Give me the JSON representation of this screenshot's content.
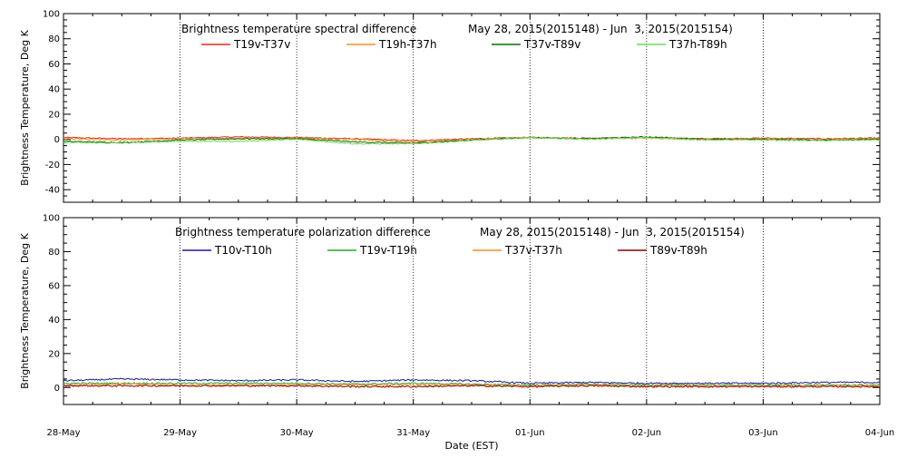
{
  "xlabel": "Date (EST)",
  "x_tick_labels": [
    "28-May",
    "29-May",
    "30-May",
    "31-May",
    "01-Jun",
    "02-Jun",
    "03-Jun",
    "04-Jun"
  ],
  "chart_data": [
    {
      "type": "line",
      "title": "Brightness temperature spectral difference",
      "date_range": "May 28, 2015(2015148) - Jun  3, 2015(2015154)",
      "ylabel": "Brightness Temperature, Deg K",
      "xlim": [
        "2015-05-28",
        "2015-06-04"
      ],
      "ylim": [
        -50,
        100
      ],
      "yticks": [
        -40,
        -20,
        0,
        20,
        40,
        60,
        80,
        100
      ],
      "grid": "vertical dotted at each day",
      "legend_placement": "top",
      "x": [
        "2015-05-28 00:00",
        "2015-05-28 12:00",
        "2015-05-29 00:00",
        "2015-05-29 12:00",
        "2015-05-30 00:00",
        "2015-05-30 12:00",
        "2015-05-31 00:00",
        "2015-05-31 12:00",
        "2015-06-01 00:00",
        "2015-06-01 12:00",
        "2015-06-02 00:00",
        "2015-06-02 12:00",
        "2015-06-03 00:00",
        "2015-06-03 12:00",
        "2015-06-04 00:00"
      ],
      "series": [
        {
          "name": "T19v-T37v",
          "color": "#e8291c",
          "values": [
            1.5,
            0.5,
            1.0,
            2.0,
            1.5,
            0.5,
            -1.0,
            0.5,
            1.5,
            1.0,
            1.5,
            0.5,
            1.0,
            0.5,
            1.0
          ]
        },
        {
          "name": "T19h-T37h",
          "color": "#ff8c1a",
          "values": [
            0.5,
            -0.5,
            0.5,
            1.0,
            1.0,
            0.0,
            -2.0,
            0.0,
            1.5,
            0.5,
            1.0,
            0.0,
            0.5,
            0.0,
            0.5
          ]
        },
        {
          "name": "T37v-T89v",
          "color": "#007000",
          "values": [
            -1.5,
            -2.5,
            -0.5,
            0.5,
            0.5,
            -2.0,
            -3.0,
            -0.5,
            1.5,
            0.5,
            2.0,
            0.0,
            0.0,
            -0.5,
            0.0
          ]
        },
        {
          "name": "T37h-T89h",
          "color": "#66dd55",
          "values": [
            -2.5,
            -3.0,
            -1.5,
            -1.5,
            0.0,
            -3.5,
            -3.5,
            -1.0,
            1.5,
            0.0,
            1.5,
            -0.5,
            -0.5,
            -1.0,
            -0.5
          ]
        }
      ]
    },
    {
      "type": "line",
      "title": "Brightness temperature polarization difference",
      "date_range": "May 28, 2015(2015148) - Jun  3, 2015(2015154)",
      "ylabel": "Brightness Temperature, Deg K",
      "xlim": [
        "2015-05-28",
        "2015-06-04"
      ],
      "ylim": [
        -10,
        100
      ],
      "yticks": [
        0,
        20,
        40,
        60,
        80,
        100
      ],
      "grid": "vertical dotted at each day",
      "legend_placement": "top",
      "x": [
        "2015-05-28 00:00",
        "2015-05-28 12:00",
        "2015-05-29 00:00",
        "2015-05-29 12:00",
        "2015-05-30 00:00",
        "2015-05-30 12:00",
        "2015-05-31 00:00",
        "2015-05-31 12:00",
        "2015-06-01 00:00",
        "2015-06-01 12:00",
        "2015-06-02 00:00",
        "2015-06-02 12:00",
        "2015-06-03 00:00",
        "2015-06-03 12:00",
        "2015-06-04 00:00"
      ],
      "series": [
        {
          "name": "T10v-T10h",
          "color": "#1a1aa6",
          "values": [
            4.0,
            5.0,
            4.5,
            4.0,
            4.5,
            3.5,
            4.5,
            4.0,
            2.5,
            3.0,
            2.5,
            2.5,
            2.5,
            3.0,
            3.0
          ]
        },
        {
          "name": "T19v-T19h",
          "color": "#22aa22",
          "values": [
            2.5,
            2.5,
            2.5,
            2.5,
            2.5,
            2.0,
            2.5,
            2.0,
            1.5,
            2.0,
            1.5,
            1.5,
            1.5,
            1.5,
            1.5
          ]
        },
        {
          "name": "T37v-T37h",
          "color": "#ff8c1a",
          "values": [
            1.5,
            2.0,
            1.5,
            1.5,
            1.5,
            1.5,
            1.5,
            1.5,
            1.0,
            1.5,
            1.0,
            1.0,
            1.0,
            1.0,
            1.0
          ]
        },
        {
          "name": "T89v-T89h",
          "color": "#8b0000",
          "values": [
            1.0,
            1.0,
            1.0,
            1.0,
            1.0,
            0.5,
            0.5,
            1.0,
            0.5,
            1.0,
            0.5,
            0.5,
            0.5,
            0.5,
            0.5
          ]
        }
      ]
    }
  ]
}
